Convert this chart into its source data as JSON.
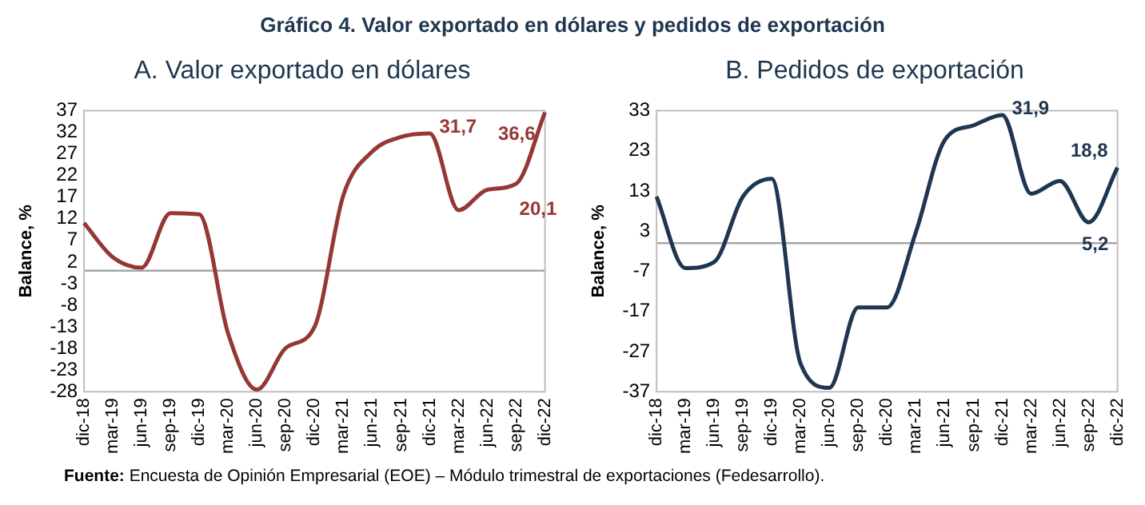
{
  "chart_data": [
    {
      "type": "line",
      "title": "A.  Valor exportado en dólares",
      "ylabel": "Balance, %",
      "annotations": [
        "Gráfico 4. Valor exportado en dólares y pedidos de exportación",
        "Fuente: Encuesta de Opinión Empresarial (EOE) – Módulo trimestral de exportaciones (Fedesarrollo)."
      ],
      "categories": [
        "dic-18",
        "mar-19",
        "jun-19",
        "sep-19",
        "dic-19",
        "mar-20",
        "jun-20",
        "sep-20",
        "dic-20",
        "mar-21",
        "jun-21",
        "sep-21",
        "dic-21",
        "mar-22",
        "jun-22",
        "sep-22",
        "dic-22"
      ],
      "series": [
        {
          "color": "#953735",
          "values": [
            11,
            3.1,
            0.7,
            13.3,
            13,
            -14.5,
            -27.5,
            -17.9,
            -13,
            17.4,
            27.5,
            30.9,
            31.7,
            14,
            18.7,
            20.1,
            36.6
          ],
          "value_labels": [
            null,
            null,
            null,
            null,
            null,
            null,
            null,
            null,
            null,
            null,
            null,
            null,
            "31,7",
            null,
            null,
            "20,1",
            "36,6"
          ]
        }
      ],
      "ylim": [
        -28,
        37
      ],
      "yticks": [
        -28,
        -23,
        -18,
        -13,
        -8,
        -3,
        2,
        7,
        12,
        17,
        22,
        27,
        32,
        37
      ],
      "ref_lines": [
        {
          "axis": "y",
          "value": 0,
          "color": "#a6a6a6"
        }
      ],
      "grid": false,
      "legend": false
    },
    {
      "type": "line",
      "title": "B.  Pedidos de exportación",
      "ylabel": "Balance, %",
      "categories": [
        "dic-18",
        "mar-19",
        "jun-19",
        "sep-19",
        "dic-19",
        "mar-20",
        "jun-20",
        "sep-20",
        "dic-20",
        "mar-21",
        "jun-21",
        "sep-21",
        "dic-21",
        "mar-22",
        "jun-22",
        "sep-22",
        "dic-22"
      ],
      "series": [
        {
          "color": "#1f3650",
          "values": [
            11.6,
            -6.2,
            -4.7,
            11.6,
            16,
            -30,
            -36,
            -16,
            -16,
            2.7,
            25.6,
            29.3,
            31.9,
            12.3,
            15.5,
            5.2,
            18.8
          ],
          "value_labels": [
            null,
            null,
            null,
            null,
            null,
            null,
            null,
            null,
            null,
            null,
            null,
            null,
            "31,9",
            null,
            null,
            "5,2",
            "18,8"
          ]
        }
      ],
      "ylim": [
        -37,
        33
      ],
      "yticks": [
        -37,
        -27,
        -17,
        -7,
        3,
        13,
        23,
        33
      ],
      "ref_lines": [
        {
          "axis": "y",
          "value": 0,
          "color": "#a6a6a6"
        }
      ],
      "grid": false,
      "legend": false
    }
  ]
}
